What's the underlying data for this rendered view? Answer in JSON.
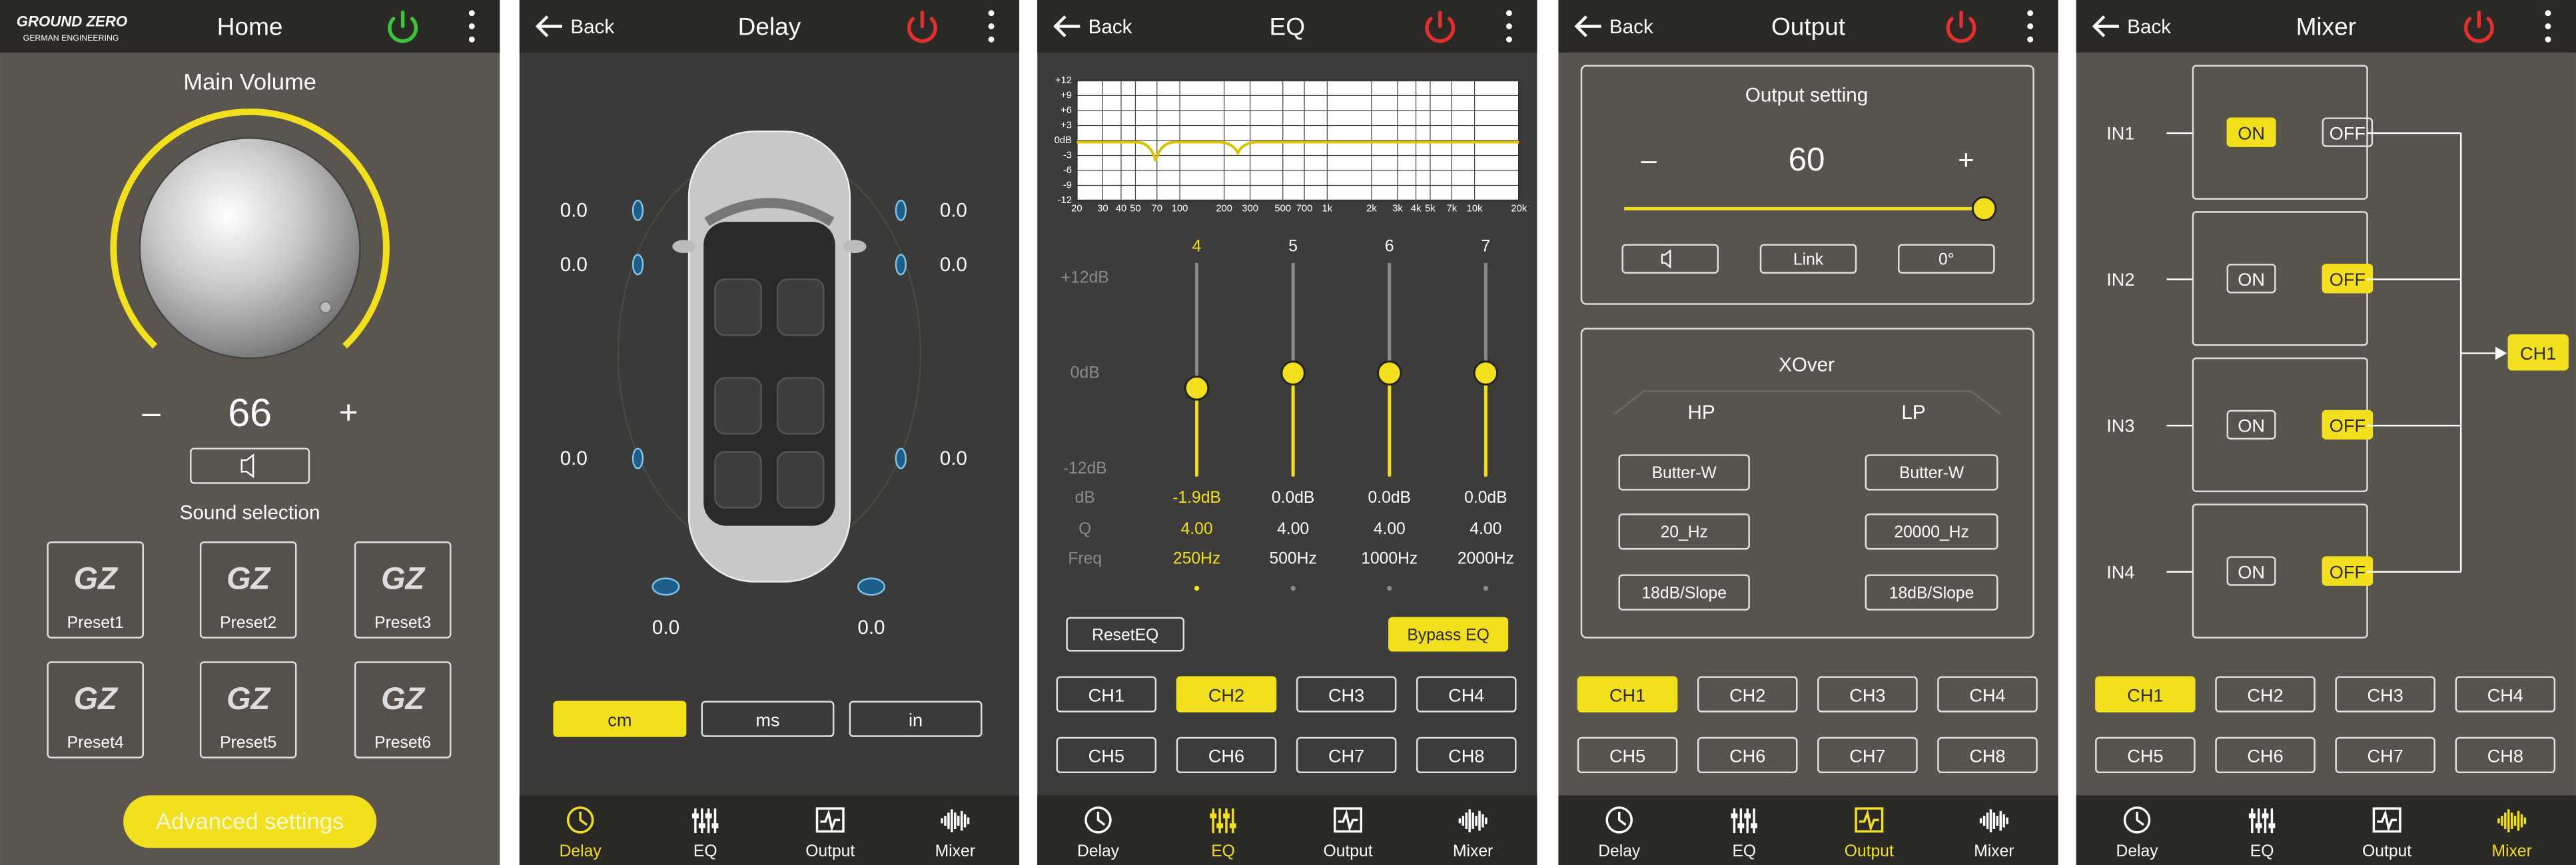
{
  "home": {
    "brand": "GROUND ZERO",
    "brand_sub": "GERMAN ENGINEERING",
    "title": "Home",
    "volume_label": "Main Volume",
    "minus": "–",
    "volume": "66",
    "plus": "+",
    "sound_selection": "Sound selection",
    "logo": "GZ",
    "presets": [
      "Preset1",
      "Preset2",
      "Preset3",
      "Preset4",
      "Preset5",
      "Preset6"
    ],
    "advanced": "Advanced settings"
  },
  "back": "Back",
  "nav": [
    "Delay",
    "EQ",
    "Output",
    "Mixer"
  ],
  "channels": [
    "CH1",
    "CH2",
    "CH3",
    "CH4",
    "CH5",
    "CH6",
    "CH7",
    "CH8"
  ],
  "delay": {
    "title": "Delay",
    "values": [
      "0.0",
      "0.0",
      "0.0",
      "0.0",
      "0.0",
      "0.0",
      "0.0",
      "0.0"
    ],
    "units": [
      "cm",
      "ms",
      "in"
    ]
  },
  "eq": {
    "title": "EQ",
    "graph_y": [
      "+12",
      "+9",
      "+6",
      "+3",
      "0dB",
      "-3",
      "-6",
      "-9",
      "-12"
    ],
    "graph_x": [
      "20",
      "30",
      "40",
      "50",
      "70",
      "100",
      "200",
      "300",
      "500",
      "700",
      "1k",
      "2k",
      "3k",
      "4k",
      "5k",
      "7k",
      "10k",
      "20k"
    ],
    "scale": [
      "+12dB",
      "0dB",
      "-12dB"
    ],
    "row_labels": [
      "dB",
      "Q",
      "Freq"
    ],
    "bands": [
      {
        "num": "4",
        "db": "-1.9dB",
        "q": "4.00",
        "freq": "250Hz"
      },
      {
        "num": "5",
        "db": "0.0dB",
        "q": "4.00",
        "freq": "500Hz"
      },
      {
        "num": "6",
        "db": "0.0dB",
        "q": "4.00",
        "freq": "1000Hz"
      },
      {
        "num": "7",
        "db": "0.0dB",
        "q": "4.00",
        "freq": "2000Hz"
      }
    ],
    "reset": "ResetEQ",
    "bypass": "Bypass EQ"
  },
  "output": {
    "title": "Output",
    "setting": "Output setting",
    "minus": "–",
    "value": "60",
    "plus": "+",
    "link": "Link",
    "phase": "0°",
    "xover": "XOver",
    "hp": "HP",
    "lp": "LP",
    "hp_filter": "Butter-W",
    "lp_filter": "Butter-W",
    "hp_freq": "20_Hz",
    "lp_freq": "20000_Hz",
    "hp_slope": "18dB/Slope",
    "lp_slope": "18dB/Slope"
  },
  "mixer": {
    "title": "Mixer",
    "inputs": [
      {
        "name": "IN1",
        "on": "ON",
        "off": "OFF"
      },
      {
        "name": "IN2",
        "on": "ON",
        "off": "OFF"
      },
      {
        "name": "IN3",
        "on": "ON",
        "off": "OFF"
      },
      {
        "name": "IN4",
        "on": "ON",
        "off": "OFF"
      }
    ],
    "output": "CH1"
  }
}
